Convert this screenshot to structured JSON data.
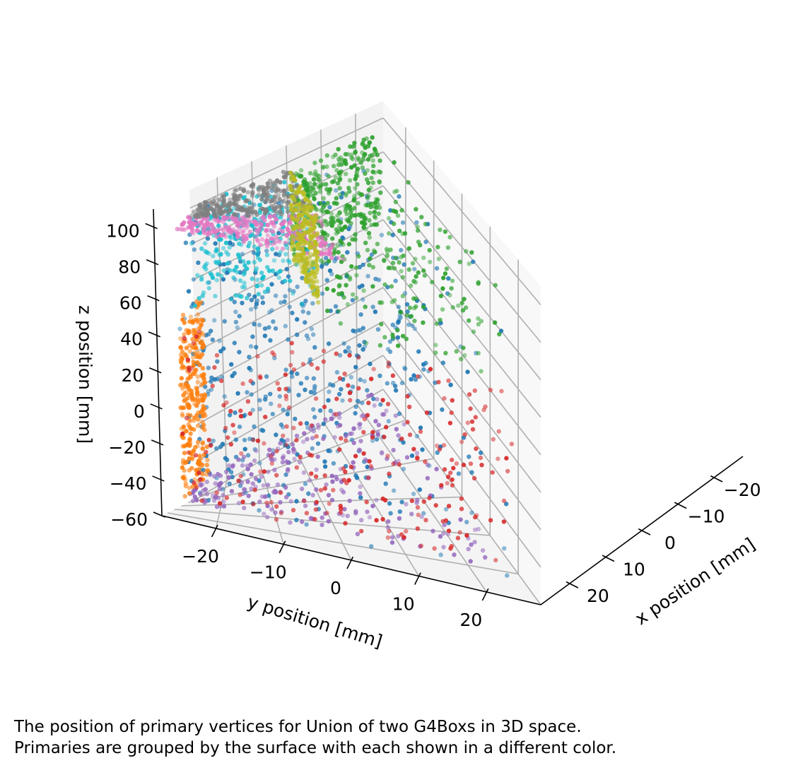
{
  "chart_data": {
    "type": "scatter",
    "projection": "3d",
    "xlabel": "x position [mm]",
    "ylabel": "y position [mm]",
    "zlabel": "z position [mm]",
    "xlim": [
      -28,
      28
    ],
    "ylim": [
      -28,
      28
    ],
    "zlim": [
      -60,
      110
    ],
    "xticks": [
      -20,
      -10,
      0,
      10,
      20
    ],
    "yticks": [
      -20,
      -10,
      0,
      10,
      20
    ],
    "zticks": [
      -60,
      -40,
      -20,
      0,
      20,
      40,
      60,
      80,
      100
    ],
    "grid": true,
    "legend": "none",
    "points_per_face": 260,
    "faces": [
      {
        "color": "#1f77b4",
        "x": [
          -25,
          25
        ],
        "y": [
          -25,
          25
        ],
        "z": [
          -60,
          100
        ],
        "scattered": true
      },
      {
        "color": "#9467bd",
        "x": [
          -25,
          25
        ],
        "y": [
          -25,
          25
        ],
        "z": [
          -50,
          -50
        ]
      },
      {
        "color": "#ff7f0e",
        "x": [
          -25,
          25
        ],
        "y": [
          -25,
          -25
        ],
        "z": [
          -50,
          50
        ]
      },
      {
        "color": "#d62728",
        "x": [
          25,
          25
        ],
        "y": [
          -25,
          25
        ],
        "z": [
          -50,
          50
        ]
      },
      {
        "color": "#2ca02c",
        "x": [
          -25,
          25
        ],
        "y": [
          0,
          25
        ],
        "z": [
          50,
          100
        ]
      },
      {
        "color": "#2ca02c",
        "x": [
          -25,
          -25
        ],
        "y": [
          0,
          25
        ],
        "z": [
          50,
          100
        ]
      },
      {
        "color": "#17becf",
        "x": [
          -25,
          0
        ],
        "y": [
          -25,
          0
        ],
        "z": [
          50,
          100
        ]
      },
      {
        "color": "#e377c2",
        "x": [
          0,
          25
        ],
        "y": [
          -25,
          0
        ],
        "z": [
          100,
          100
        ]
      },
      {
        "color": "#7f7f7f",
        "x": [
          -25,
          0
        ],
        "y": [
          -25,
          0
        ],
        "z": [
          100,
          100
        ]
      },
      {
        "color": "#bcbd22",
        "x": [
          -25,
          0
        ],
        "y": [
          0,
          0
        ],
        "z": [
          50,
          100
        ]
      }
    ]
  },
  "caption": {
    "line1": "The position of primary vertices for Union of two G4Boxs in 3D space.",
    "line2": "Primaries are grouped by the surface with each shown in a different color."
  }
}
